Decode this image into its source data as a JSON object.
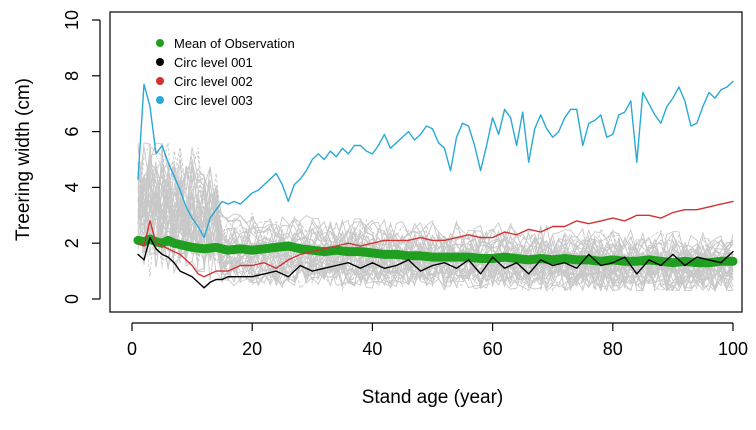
{
  "chart_data": {
    "type": "line",
    "xlabel": "Stand age (year)",
    "ylabel": "Treering width (cm)",
    "xlim": [
      0,
      100
    ],
    "ylim": [
      0,
      10
    ],
    "xticks": [
      "0",
      "20",
      "40",
      "60",
      "80",
      "100"
    ],
    "yticks": [
      "0",
      "2",
      "4",
      "6",
      "8",
      "10"
    ],
    "grid": false,
    "legend_position": "top-left",
    "observation_cloud": {
      "color": "#c8c8c8",
      "series_count": 40,
      "range": [
        0.3,
        5.6
      ]
    },
    "series": [
      {
        "name": "Mean of Observation",
        "color": "#1f9e1f",
        "x": [
          1,
          2,
          3,
          4,
          5,
          6,
          7,
          8,
          9,
          10,
          12,
          14,
          16,
          18,
          20,
          22,
          24,
          26,
          28,
          30,
          32,
          34,
          36,
          38,
          40,
          42,
          44,
          46,
          48,
          50,
          52,
          54,
          56,
          58,
          60,
          62,
          64,
          66,
          68,
          70,
          72,
          74,
          76,
          78,
          80,
          82,
          84,
          86,
          88,
          90,
          92,
          94,
          96,
          98,
          100
        ],
        "values": [
          2.1,
          2.05,
          2.15,
          2.05,
          2.0,
          2.1,
          2.0,
          1.95,
          1.9,
          1.85,
          1.8,
          1.85,
          1.75,
          1.8,
          1.75,
          1.8,
          1.85,
          1.9,
          1.8,
          1.75,
          1.7,
          1.75,
          1.7,
          1.7,
          1.65,
          1.6,
          1.6,
          1.55,
          1.55,
          1.5,
          1.5,
          1.5,
          1.5,
          1.45,
          1.45,
          1.5,
          1.45,
          1.4,
          1.45,
          1.4,
          1.45,
          1.4,
          1.4,
          1.35,
          1.4,
          1.35,
          1.35,
          1.4,
          1.35,
          1.3,
          1.35,
          1.3,
          1.3,
          1.35,
          1.35
        ]
      },
      {
        "name": "Circ level 001",
        "color": "#000000",
        "x": [
          1,
          2,
          3,
          4,
          5,
          6,
          7,
          8,
          9,
          10,
          11,
          12,
          13,
          14,
          15,
          16,
          18,
          20,
          22,
          24,
          26,
          28,
          30,
          32,
          34,
          36,
          38,
          40,
          42,
          44,
          46,
          48,
          50,
          52,
          54,
          56,
          58,
          60,
          62,
          64,
          66,
          68,
          70,
          72,
          74,
          76,
          78,
          80,
          82,
          84,
          86,
          88,
          90,
          92,
          94,
          96,
          98,
          100
        ],
        "values": [
          1.6,
          1.4,
          2.2,
          1.8,
          1.6,
          1.5,
          1.3,
          1.0,
          0.9,
          0.8,
          0.6,
          0.4,
          0.6,
          0.7,
          0.7,
          0.8,
          0.8,
          0.8,
          0.9,
          1.0,
          0.8,
          1.2,
          1.0,
          1.1,
          1.2,
          1.3,
          1.1,
          1.3,
          1.1,
          1.2,
          1.4,
          1.0,
          1.2,
          1.3,
          1.1,
          1.4,
          0.9,
          1.5,
          1.1,
          1.3,
          0.9,
          1.4,
          1.2,
          1.3,
          1.1,
          1.6,
          1.2,
          1.3,
          1.5,
          0.9,
          1.4,
          1.2,
          1.6,
          1.2,
          1.5,
          1.4,
          1.3,
          1.7
        ]
      },
      {
        "name": "Circ level 002",
        "color": "#d23232",
        "x": [
          1,
          2,
          3,
          4,
          5,
          6,
          7,
          8,
          9,
          10,
          11,
          12,
          14,
          16,
          18,
          20,
          22,
          24,
          26,
          28,
          30,
          32,
          34,
          36,
          38,
          40,
          42,
          44,
          46,
          48,
          50,
          52,
          54,
          56,
          58,
          60,
          62,
          64,
          66,
          68,
          70,
          72,
          74,
          76,
          78,
          80,
          82,
          84,
          86,
          88,
          90,
          92,
          94,
          96,
          98,
          100
        ],
        "values": [
          2.0,
          1.9,
          2.8,
          2.0,
          1.9,
          1.8,
          1.7,
          1.6,
          1.4,
          1.2,
          0.9,
          0.8,
          1.0,
          1.0,
          1.2,
          1.2,
          1.3,
          1.1,
          1.4,
          1.6,
          1.7,
          1.8,
          1.9,
          2.0,
          1.9,
          2.0,
          2.1,
          2.1,
          2.1,
          2.2,
          2.1,
          2.1,
          2.2,
          2.3,
          2.2,
          2.2,
          2.4,
          2.3,
          2.5,
          2.4,
          2.6,
          2.6,
          2.8,
          2.7,
          2.8,
          2.9,
          2.8,
          3.0,
          3.0,
          2.9,
          3.1,
          3.2,
          3.2,
          3.3,
          3.4,
          3.5
        ]
      },
      {
        "name": "Circ level 003",
        "color": "#29a9d6",
        "x": [
          1,
          2,
          3,
          4,
          5,
          6,
          7,
          8,
          9,
          10,
          11,
          12,
          13,
          14,
          15,
          16,
          17,
          18,
          19,
          20,
          21,
          22,
          23,
          24,
          25,
          26,
          27,
          28,
          29,
          30,
          31,
          32,
          33,
          34,
          35,
          36,
          37,
          38,
          39,
          40,
          41,
          42,
          43,
          44,
          45,
          46,
          47,
          48,
          49,
          50,
          51,
          52,
          53,
          54,
          55,
          56,
          57,
          58,
          59,
          60,
          61,
          62,
          63,
          64,
          65,
          66,
          67,
          68,
          69,
          70,
          71,
          72,
          73,
          74,
          75,
          76,
          77,
          78,
          79,
          80,
          81,
          82,
          83,
          84,
          85,
          86,
          87,
          88,
          89,
          90,
          91,
          92,
          93,
          94,
          95,
          96,
          97,
          98,
          99,
          100
        ],
        "values": [
          4.3,
          7.7,
          6.9,
          5.2,
          5.5,
          4.9,
          4.4,
          3.9,
          3.3,
          2.9,
          2.6,
          2.2,
          2.9,
          3.2,
          3.5,
          3.4,
          3.5,
          3.4,
          3.6,
          3.8,
          3.9,
          4.1,
          4.3,
          4.5,
          4.1,
          3.5,
          4.1,
          4.3,
          4.6,
          5.0,
          5.2,
          5.0,
          5.3,
          5.1,
          5.4,
          5.2,
          5.5,
          5.5,
          5.3,
          5.2,
          5.5,
          5.9,
          5.4,
          5.6,
          5.8,
          6.0,
          5.7,
          5.9,
          6.2,
          6.1,
          5.6,
          5.4,
          4.6,
          5.8,
          6.3,
          6.2,
          5.5,
          4.6,
          5.5,
          6.5,
          5.9,
          6.8,
          6.5,
          5.5,
          6.7,
          4.9,
          6.1,
          6.6,
          6.1,
          5.8,
          6.0,
          6.5,
          6.8,
          6.8,
          5.5,
          6.3,
          6.4,
          6.6,
          5.8,
          5.9,
          6.6,
          6.7,
          7.1,
          4.9,
          7.4,
          7.0,
          6.6,
          6.3,
          6.9,
          7.2,
          7.6,
          7.1,
          6.2,
          6.3,
          6.9,
          7.4,
          7.2,
          7.5,
          7.6,
          7.8
        ]
      }
    ]
  }
}
